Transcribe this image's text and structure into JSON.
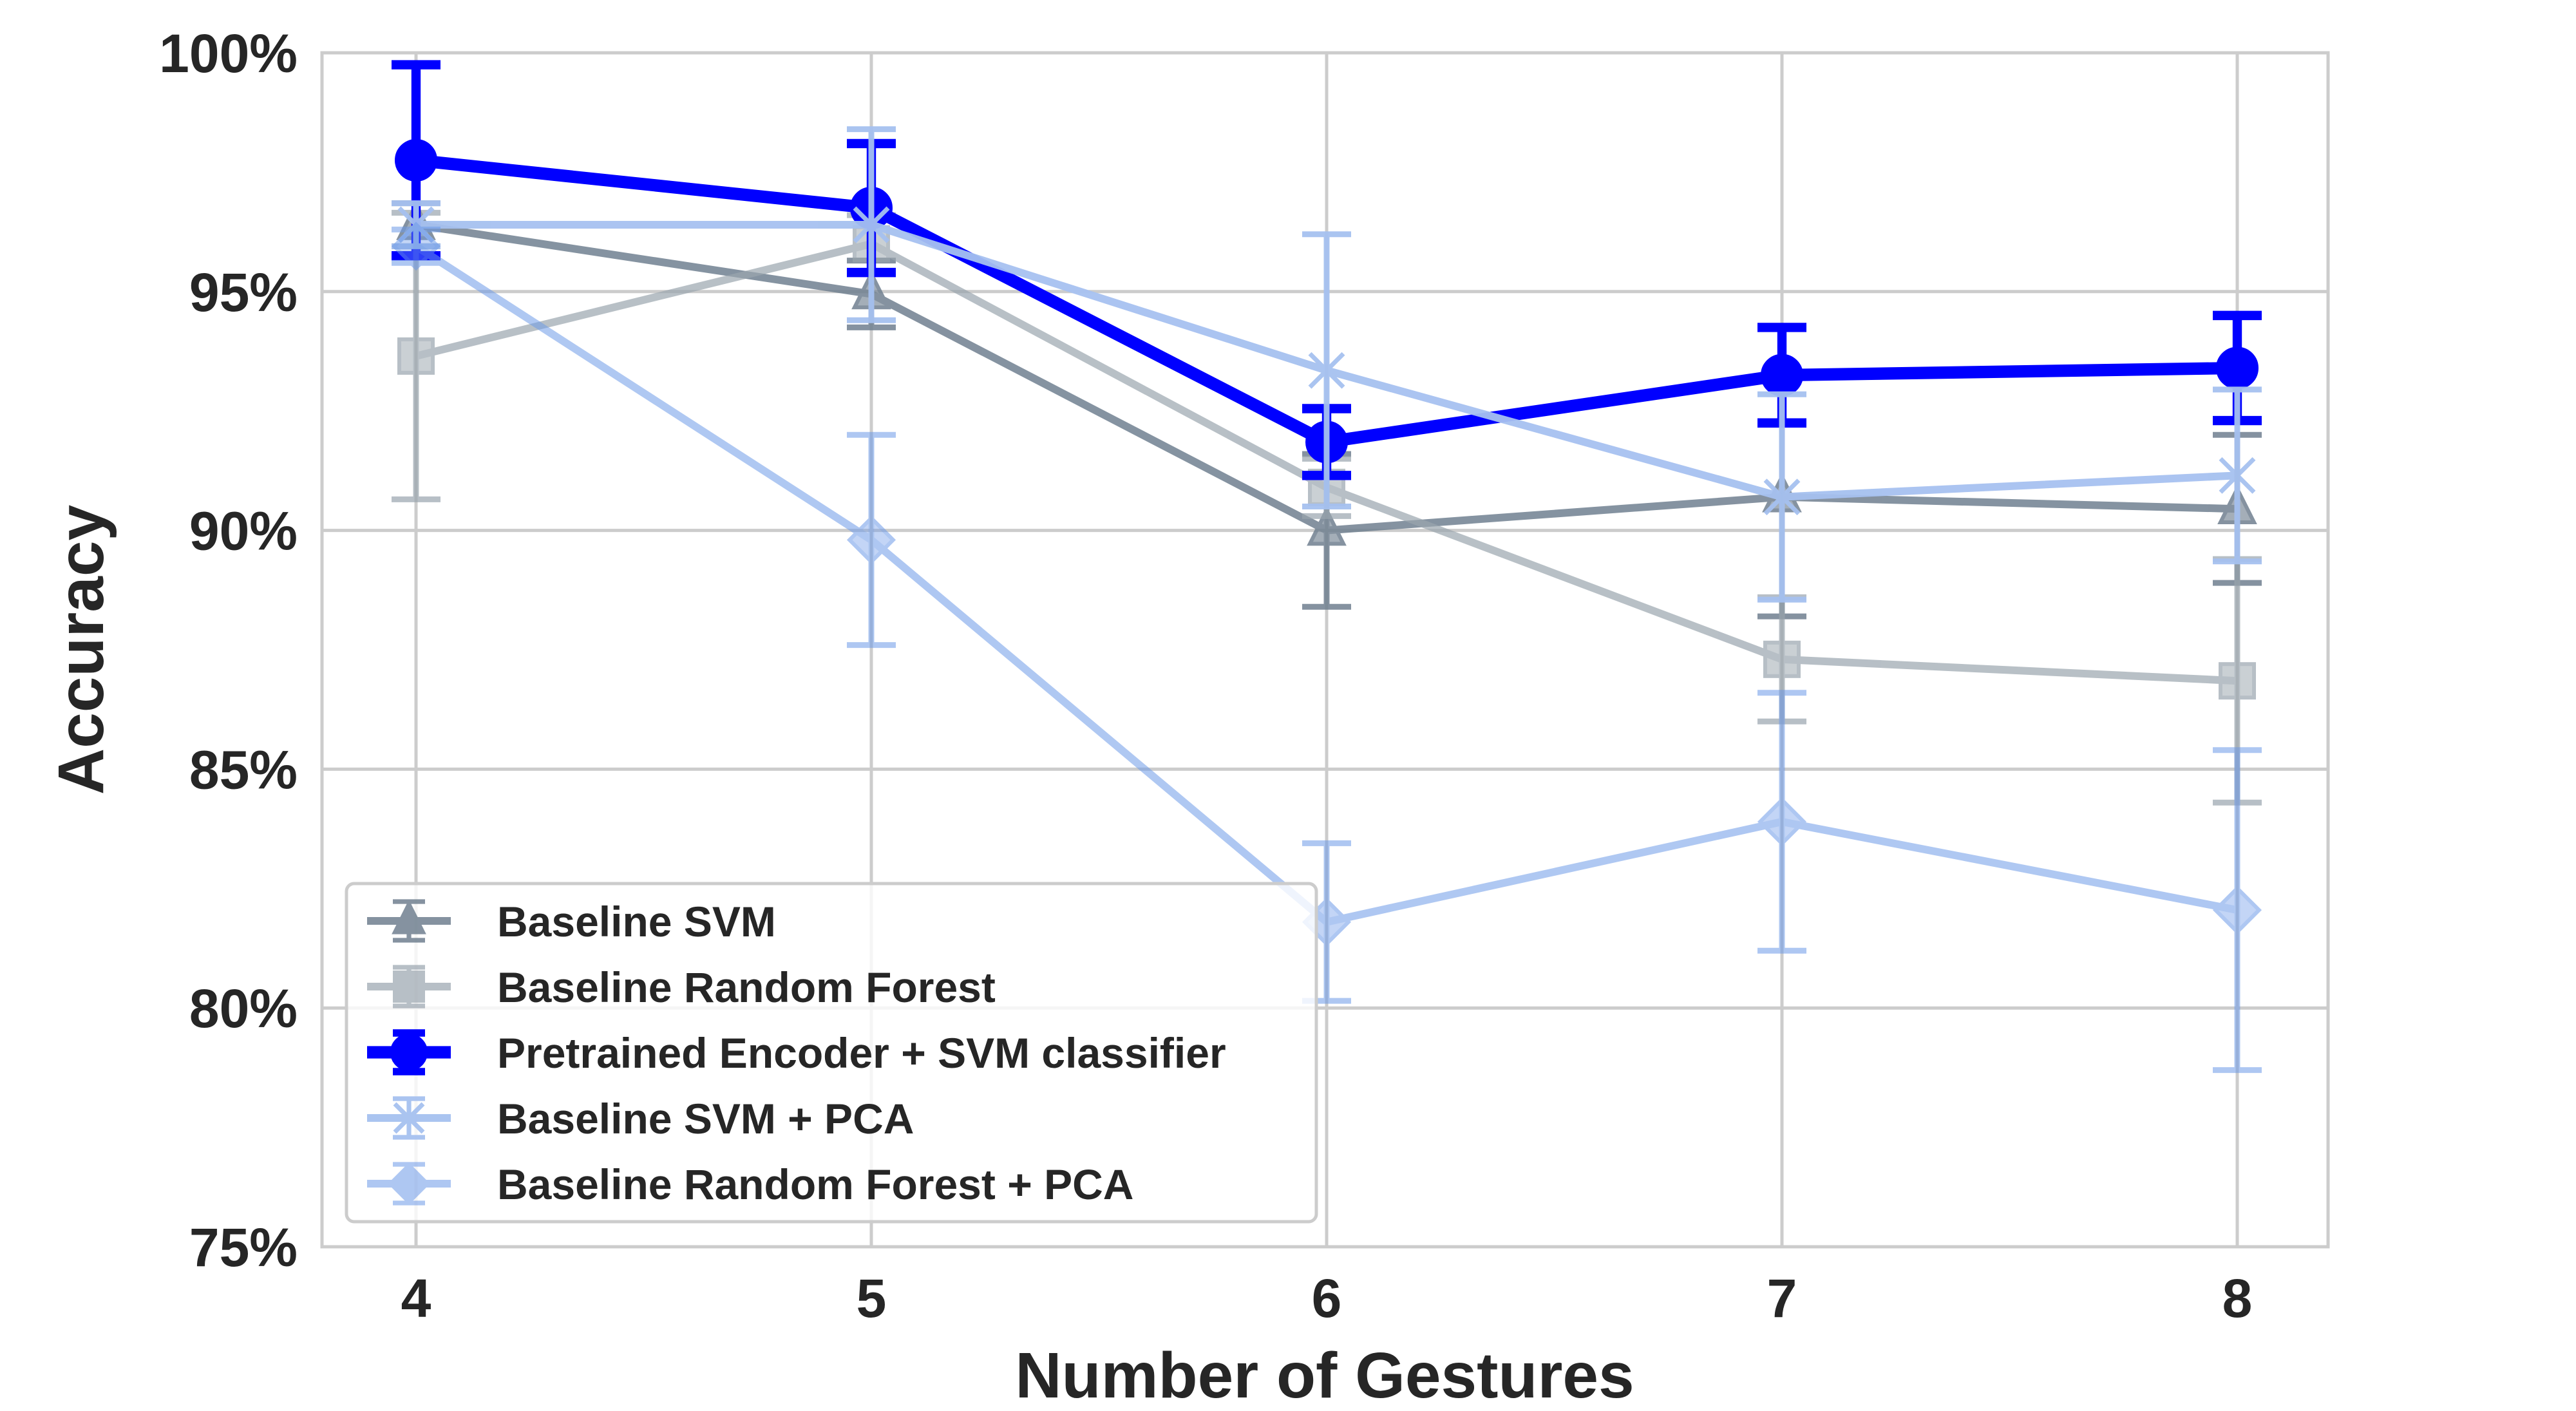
{
  "chart_data": {
    "type": "line",
    "title": "",
    "xlabel": "Number of Gestures",
    "ylabel": "Accuracy",
    "x": [
      4,
      5,
      6,
      7,
      8
    ],
    "xticks": [
      "4",
      "5",
      "6",
      "7",
      "8"
    ],
    "ylim": [
      75,
      100
    ],
    "yticks": [
      "75%",
      "80%",
      "85%",
      "90%",
      "95%",
      "100%"
    ],
    "ytick_values": [
      75,
      80,
      85,
      90,
      95,
      100
    ],
    "grid": true,
    "legend_placement": "lower-left",
    "series": [
      {
        "name": "Baseline SVM",
        "marker": "triangle",
        "color": "#708090",
        "opacity": 0.85,
        "width": 1,
        "values": [
          96.4,
          94.95,
          90.0,
          90.7,
          90.45
        ],
        "errors": [
          0.45,
          0.7,
          1.6,
          2.5,
          1.55
        ]
      },
      {
        "name": "Baseline Random Forest",
        "marker": "square",
        "color": "#9aa5ae",
        "opacity": 0.7,
        "width": 1,
        "values": [
          93.65,
          96.0,
          90.9,
          87.3,
          86.85
        ],
        "errors": [
          3.0,
          0.6,
          0.6,
          1.3,
          2.55
        ]
      },
      {
        "name": "Pretrained Encoder + SVM classifier",
        "marker": "circle",
        "color": "#0000ff",
        "opacity": 1,
        "width": 1.6,
        "values": [
          97.75,
          96.75,
          91.85,
          93.25,
          93.4
        ],
        "errors": [
          2.0,
          1.35,
          0.7,
          1.0,
          1.1
        ]
      },
      {
        "name": "Baseline SVM + PCA",
        "marker": "x",
        "color": "#a6c1f0",
        "opacity": 0.95,
        "width": 1,
        "values": [
          96.4,
          96.4,
          93.35,
          90.7,
          91.15
        ],
        "errors": [
          0.45,
          2.0,
          2.85,
          2.15,
          1.8
        ]
      },
      {
        "name": "Baseline Random Forest + PCA",
        "marker": "diamond",
        "color": "#6d9ae8",
        "opacity": 0.55,
        "width": 1,
        "values": [
          95.95,
          89.8,
          81.8,
          83.9,
          82.05
        ],
        "errors": [
          0.35,
          2.2,
          1.65,
          2.7,
          3.35
        ]
      }
    ]
  }
}
